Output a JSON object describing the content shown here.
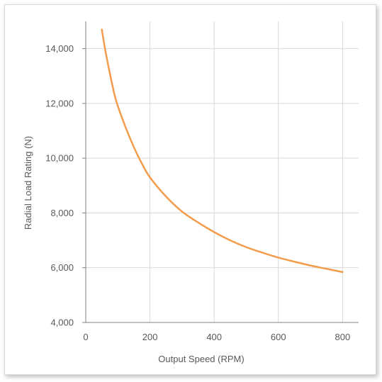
{
  "chart_data": {
    "type": "line",
    "title": "",
    "xlabel": "Output Speed (RPM)",
    "ylabel": "Radial Load Rating (N)",
    "xlim": [
      0,
      850
    ],
    "ylim": [
      4000,
      15000
    ],
    "xticks": [
      0,
      200,
      400,
      600,
      800
    ],
    "yticks": [
      4000,
      6000,
      8000,
      10000,
      12000,
      14000
    ],
    "xtick_labels": [
      "0",
      "200",
      "400",
      "600",
      "800"
    ],
    "ytick_labels": [
      "4,000",
      "6,000",
      "8,000",
      "10,000",
      "12,000",
      "14,000"
    ],
    "grid": true,
    "line_color": "#F39C4B",
    "grid_color": "#d9d9d9",
    "axis_color": "#808080",
    "series": [
      {
        "x": [
          50,
          60,
          75,
          90,
          100,
          125,
          150,
          175,
          200,
          250,
          300,
          350,
          400,
          450,
          500,
          550,
          600,
          650,
          700,
          750,
          800
        ],
        "values": [
          14700,
          14000,
          13100,
          12300,
          11900,
          11100,
          10400,
          9800,
          9300,
          8600,
          8050,
          7650,
          7300,
          7000,
          6750,
          6550,
          6370,
          6220,
          6080,
          5960,
          5840
        ]
      }
    ]
  }
}
